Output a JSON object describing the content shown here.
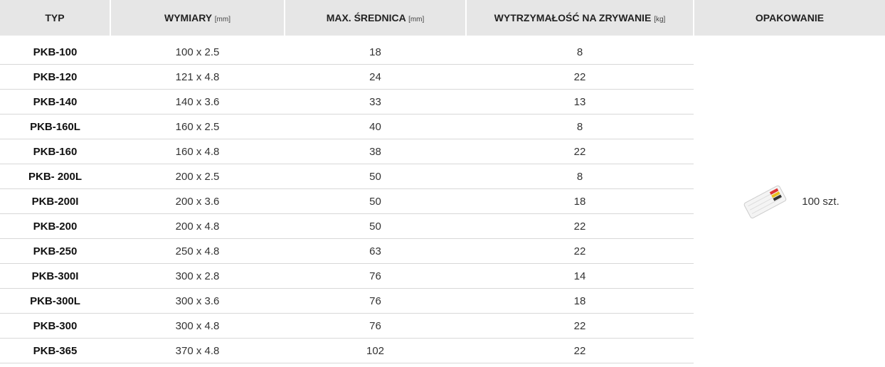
{
  "table": {
    "header": [
      {
        "title": "TYP"
      },
      {
        "title": "WYMIARY",
        "unit": "[mm]"
      },
      {
        "title": "MAX. ŚREDNICA",
        "unit": "[mm]"
      },
      {
        "title": "WYTRZYMAŁOŚĆ NA ZRYWANIE",
        "unit": "[kg]"
      },
      {
        "title": "OPAKOWANIE"
      }
    ],
    "rows": [
      [
        "PKB-100",
        "100 x 2.5",
        18,
        8
      ],
      [
        "PKB-120",
        "121 x 4.8",
        24,
        22
      ],
      [
        "PKB-140",
        "140 x 3.6",
        33,
        13
      ],
      [
        "PKB-160L",
        "160 x 2.5",
        40,
        8
      ],
      [
        "PKB-160",
        "160 x 4.8",
        38,
        22
      ],
      [
        "PKB- 200L",
        "200 x 2.5",
        50,
        8
      ],
      [
        "PKB-200I",
        "200 x 3.6",
        50,
        18
      ],
      [
        "PKB-200",
        "200 x 4.8",
        50,
        22
      ],
      [
        "PKB-250",
        "250 x 4.8",
        63,
        22
      ],
      [
        "PKB-300I",
        "300 x 2.8",
        76,
        14
      ],
      [
        "PKB-300L",
        "300 x 3.6",
        76,
        18
      ],
      [
        "PKB-300",
        "300 x 4.8",
        76,
        22
      ],
      [
        "PKB-365",
        "370 x 4.8",
        102,
        22
      ]
    ],
    "package": "100 szt."
  }
}
